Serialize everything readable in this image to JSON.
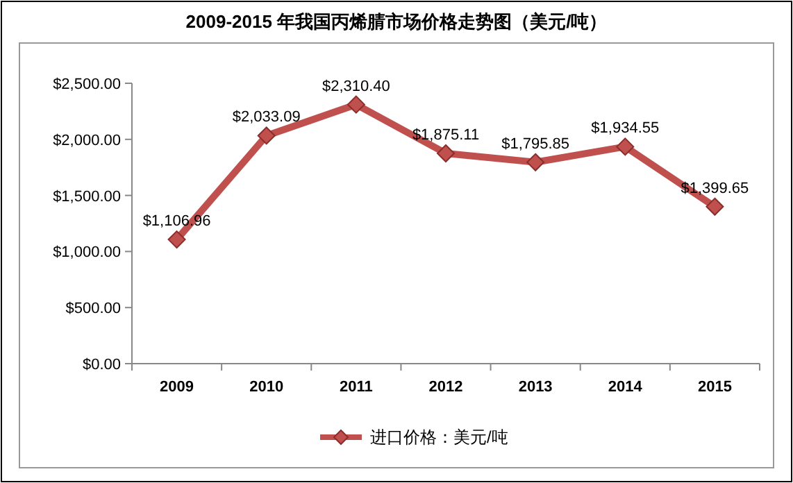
{
  "chart_data": {
    "type": "line",
    "title": "2009-2015 年我国丙烯腈市场价格走势图（美元/吨）",
    "categories": [
      "2009",
      "2010",
      "2011",
      "2012",
      "2013",
      "2014",
      "2015"
    ],
    "series": [
      {
        "name": "进口价格：美元/吨",
        "color": "#c0504d",
        "values": [
          1106.96,
          2033.09,
          2310.4,
          1875.11,
          1795.85,
          1934.55,
          1399.65
        ],
        "value_labels": [
          "$1,106.96",
          "$2,033.09",
          "$2,310.40",
          "$1,875.11",
          "$1,795.85",
          "$1,934.55",
          "$1,399.65"
        ]
      }
    ],
    "ylim": [
      0,
      2500
    ],
    "yticks": [
      {
        "value": 0,
        "label": "$0.00"
      },
      {
        "value": 500,
        "label": "$500.00"
      },
      {
        "value": 1000,
        "label": "$1,000.00"
      },
      {
        "value": 1500,
        "label": "$1,500.00"
      },
      {
        "value": 2000,
        "label": "$2,000.00"
      },
      {
        "value": 2500,
        "label": "$2,500.00"
      }
    ],
    "grid": false,
    "legend": "bottom",
    "marker": "diamond",
    "line_style": "solid"
  }
}
